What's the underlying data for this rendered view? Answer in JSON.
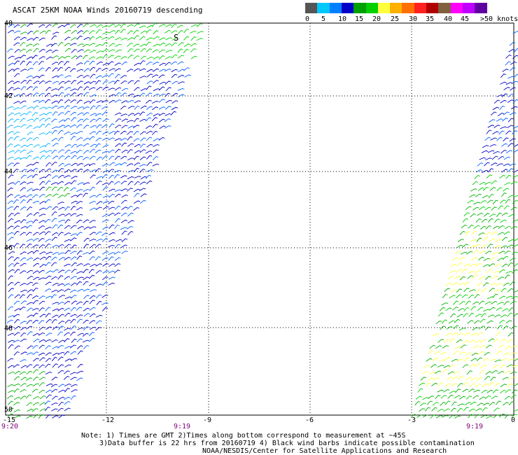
{
  "title": "ASCAT 25KM NOAA Winds 20160719 descending",
  "scale": {
    "colors": [
      "#555555",
      "#00c8ff",
      "#0080ff",
      "#0000c8",
      "#00a000",
      "#00d000",
      "#ffff40",
      "#ffb000",
      "#ff7000",
      "#ff2020",
      "#b00000",
      "#806040",
      "#ff00ff",
      "#c000ff",
      "#6000a0"
    ],
    "labels": [
      "0",
      "5",
      "10",
      "15",
      "20",
      "25",
      "30",
      "35",
      "40",
      "45",
      ">50 knots"
    ]
  },
  "map": {
    "lat_labels": [
      "40",
      "42",
      "44",
      "46",
      "48",
      "50"
    ],
    "lon_labels": [
      "-15",
      "-12",
      "-9",
      "-6",
      "-3",
      "0"
    ],
    "time_labels": [
      "9:20",
      "9:19",
      "9:19"
    ],
    "track_marker": "S",
    "grid_lons": [
      -15,
      -12,
      -9,
      -6,
      -3,
      0
    ],
    "grid_lats": [
      40,
      42,
      44,
      46,
      48,
      50
    ],
    "barb_colors": {
      "dark_blue": "#0000c8",
      "blue": "#0060ff",
      "cyan": "#00b0ff",
      "green": "#00b000",
      "light_green": "#00d000",
      "yellow": "#ffff40"
    }
  },
  "notes": {
    "line1": "Note: 1) Times are GMT 2)Times along bottom correspond to measurement at ~45S",
    "line2": "3)Data buffer is 22 hrs from 20160719 4) Black wind barbs indicate possible contamination",
    "line3": "NOAA/NESDIS/Center for Satellite Applications and Research"
  }
}
